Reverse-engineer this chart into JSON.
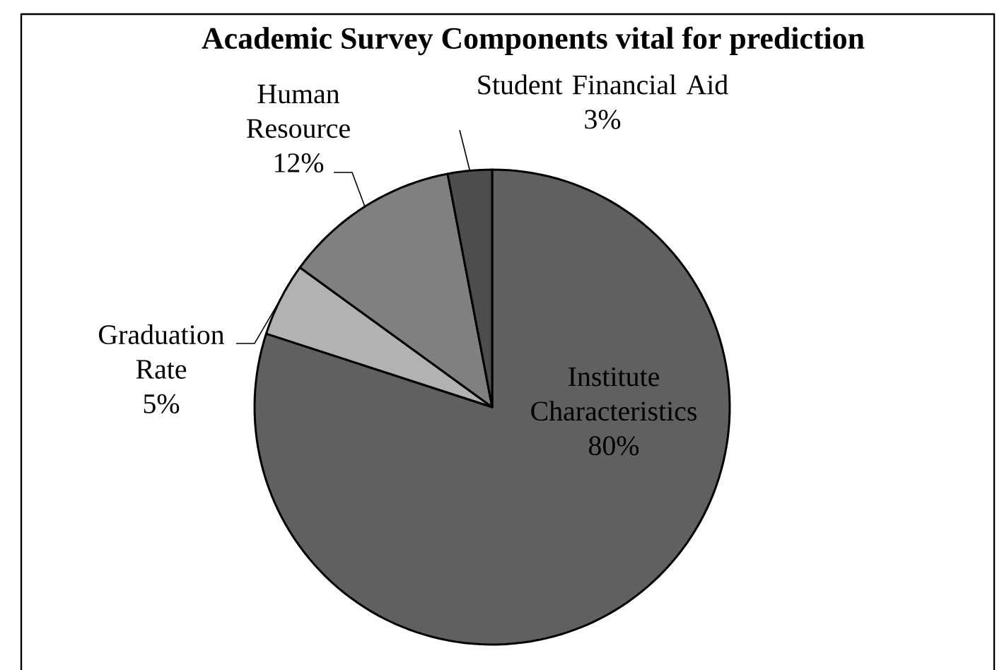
{
  "chart_data": {
    "type": "pie",
    "title": "Academic Survey Components vital for prediction",
    "categories": [
      "Institute Characteristics",
      "Graduation Rate",
      "Human Resource",
      "Student Financial Aid"
    ],
    "values": [
      80,
      5,
      12,
      3
    ],
    "value_labels": [
      "80%",
      "5%",
      "12%",
      "3%"
    ],
    "colors": [
      "#606060",
      "#b2b2b2",
      "#808080",
      "#4d4d4d"
    ]
  }
}
